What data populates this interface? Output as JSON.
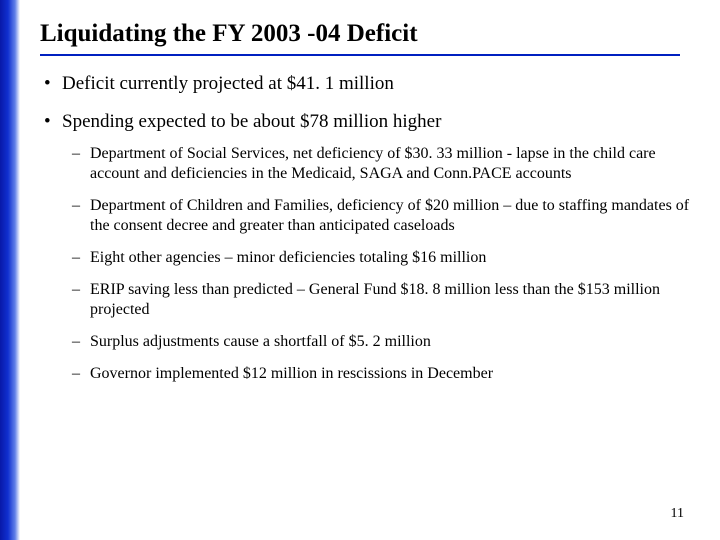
{
  "title": "Liquidating the FY 2003 -04 Deficit",
  "bullets": [
    {
      "text": "Deficit currently projected at $41. 1 million",
      "sub": []
    },
    {
      "text": "Spending expected to be about $78 million higher",
      "sub": [
        "Department of Social Services, net deficiency of $30. 33 million - lapse in the child care account and deficiencies in the Medicaid, SAGA and Conn.PACE accounts",
        "Department of Children and Families, deficiency of $20 million – due to staffing mandates of the consent decree and greater than anticipated caseloads",
        "Eight other agencies – minor deficiencies totaling $16 million",
        "ERIP saving less than predicted – General Fund $18. 8 million less than the $153 million projected",
        "Surplus adjustments cause a shortfall of $5. 2 million",
        "Governor implemented $12 million in rescissions in December"
      ]
    }
  ],
  "page_number": "11",
  "colors": {
    "underline": "#0020c0",
    "gradient_start": "#0818a8",
    "gradient_end": "#ffffff",
    "text": "#000000",
    "background": "#ffffff"
  }
}
